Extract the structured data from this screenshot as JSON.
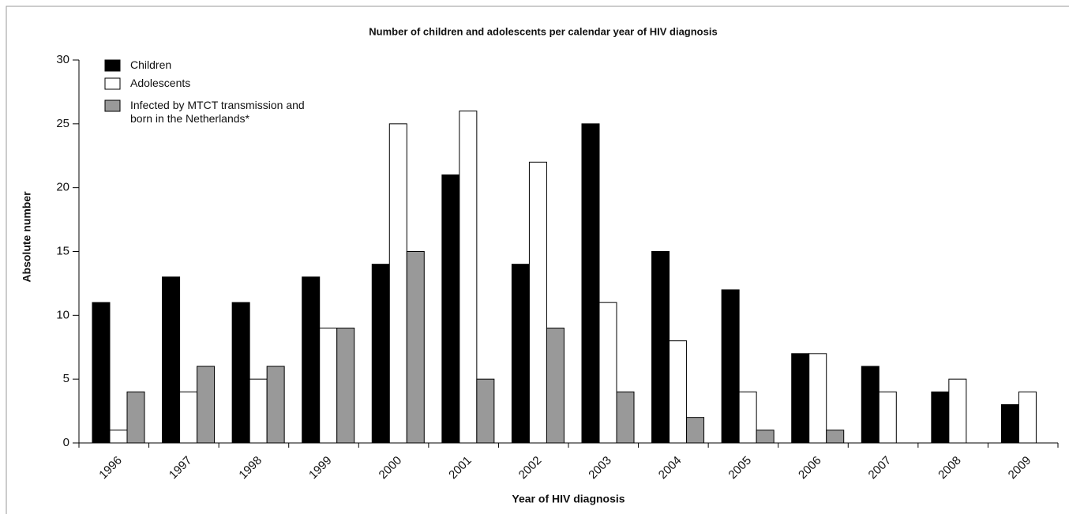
{
  "chart_data": {
    "type": "bar",
    "title": "Number of children and adolescents per calendar year of HIV diagnosis",
    "x_label": "Year of HIV diagnosis",
    "y_label": "Absolute number",
    "categories": [
      "1996",
      "1997",
      "1998",
      "1999",
      "2000",
      "2001",
      "2002",
      "2003",
      "2004",
      "2005",
      "2006",
      "2007",
      "2008",
      "2009"
    ],
    "series": [
      {
        "name": "Children",
        "color": "#000000",
        "values": [
          11,
          13,
          11,
          13,
          14,
          21,
          14,
          25,
          15,
          12,
          7,
          6,
          4,
          3
        ]
      },
      {
        "name": "Adolescents",
        "color": "#ffffff",
        "values": [
          1,
          4,
          5,
          9,
          25,
          26,
          22,
          11,
          8,
          4,
          7,
          4,
          5,
          4
        ]
      },
      {
        "name": "Infected by MTCT transmission and born in the Netherlands*",
        "color": "#999999",
        "values": [
          4,
          6,
          6,
          9,
          15,
          5,
          9,
          4,
          2,
          1,
          1,
          null,
          null,
          null
        ]
      }
    ],
    "ylim": [
      0,
      30
    ],
    "yticks": [
      0,
      5,
      10,
      15,
      20,
      25,
      30
    ],
    "grid": false,
    "legend": "upper left"
  }
}
